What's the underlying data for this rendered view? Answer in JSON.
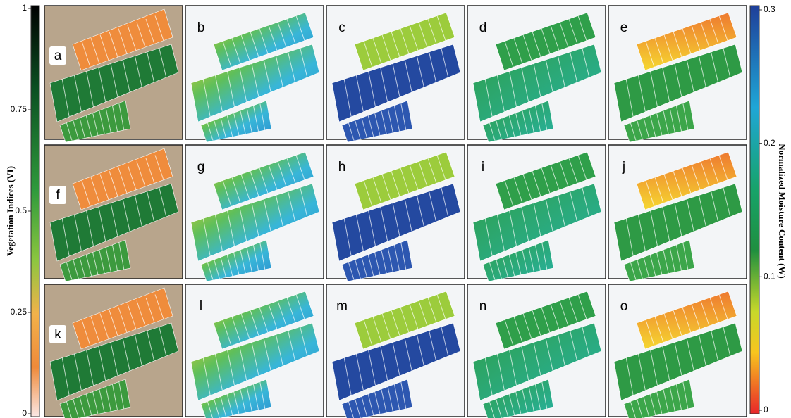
{
  "panels": [
    "a",
    "b",
    "c",
    "d",
    "e",
    "f",
    "g",
    "h",
    "i",
    "j",
    "k",
    "l",
    "m",
    "n",
    "o"
  ],
  "vi_colorbar": {
    "label": "Vegetation Indices (VI)",
    "lim": [
      0,
      1
    ],
    "ticks": [
      0,
      0.25,
      0.5,
      0.75,
      1
    ]
  },
  "w_colorbar": {
    "label": "Normalized Moisture Content (W)",
    "lim": [
      0,
      0.3
    ],
    "ticks": [
      0,
      0.1,
      0.2,
      0.3
    ]
  }
}
